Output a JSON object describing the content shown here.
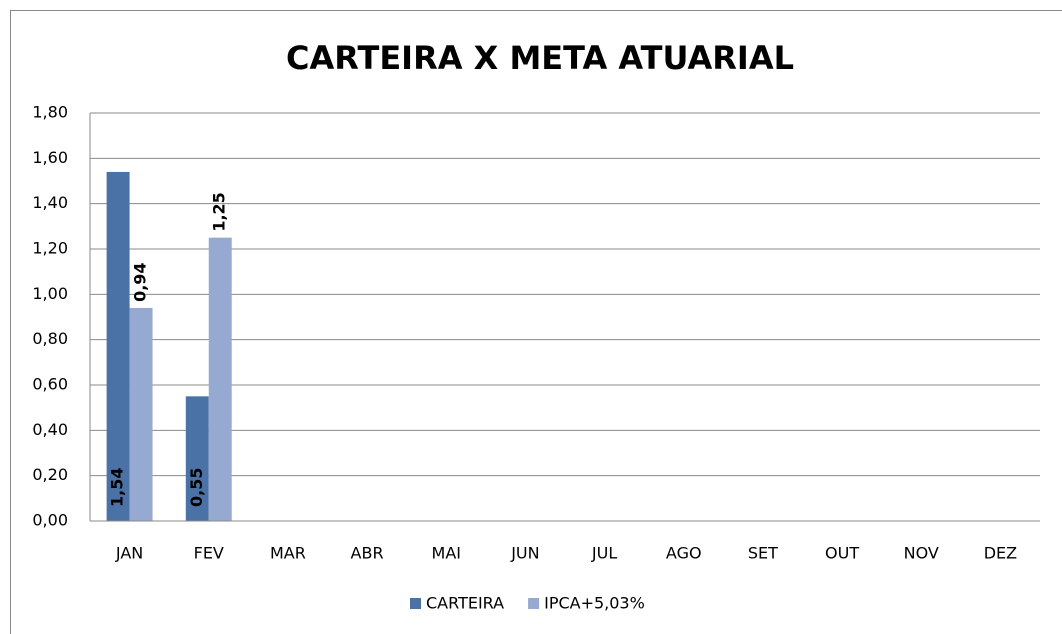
{
  "chart_data": {
    "type": "bar",
    "title": "CARTEIRA X META ATUARIAL",
    "categories": [
      "JAN",
      "FEV",
      "MAR",
      "ABR",
      "MAI",
      "JUN",
      "JUL",
      "AGO",
      "SET",
      "OUT",
      "NOV",
      "DEZ"
    ],
    "series": [
      {
        "name": "CARTEIRA",
        "color": "#4a72a6",
        "values": [
          1.54,
          0.55,
          null,
          null,
          null,
          null,
          null,
          null,
          null,
          null,
          null,
          null
        ],
        "value_labels": [
          "1,54",
          "0,55",
          null,
          null,
          null,
          null,
          null,
          null,
          null,
          null,
          null,
          null
        ]
      },
      {
        "name": "IPCA+5,03%",
        "color": "#95a9d1",
        "values": [
          0.94,
          1.25,
          null,
          null,
          null,
          null,
          null,
          null,
          null,
          null,
          null,
          null
        ],
        "value_labels": [
          "0,94",
          "1,25",
          null,
          null,
          null,
          null,
          null,
          null,
          null,
          null,
          null,
          null
        ]
      }
    ],
    "ylim": [
      0,
      1.8
    ],
    "yticks": [
      {
        "value": 0,
        "label": "0,00"
      },
      {
        "value": 0.2,
        "label": "0,20"
      },
      {
        "value": 0.4,
        "label": "0,40"
      },
      {
        "value": 0.6,
        "label": "0,60"
      },
      {
        "value": 0.8,
        "label": "0,80"
      },
      {
        "value": 1.0,
        "label": "1,00"
      },
      {
        "value": 1.2,
        "label": "1,20"
      },
      {
        "value": 1.4,
        "label": "1,40"
      },
      {
        "value": 1.6,
        "label": "1,60"
      },
      {
        "value": 1.8,
        "label": "1,80"
      }
    ],
    "grid": true,
    "legend": "bottom"
  }
}
